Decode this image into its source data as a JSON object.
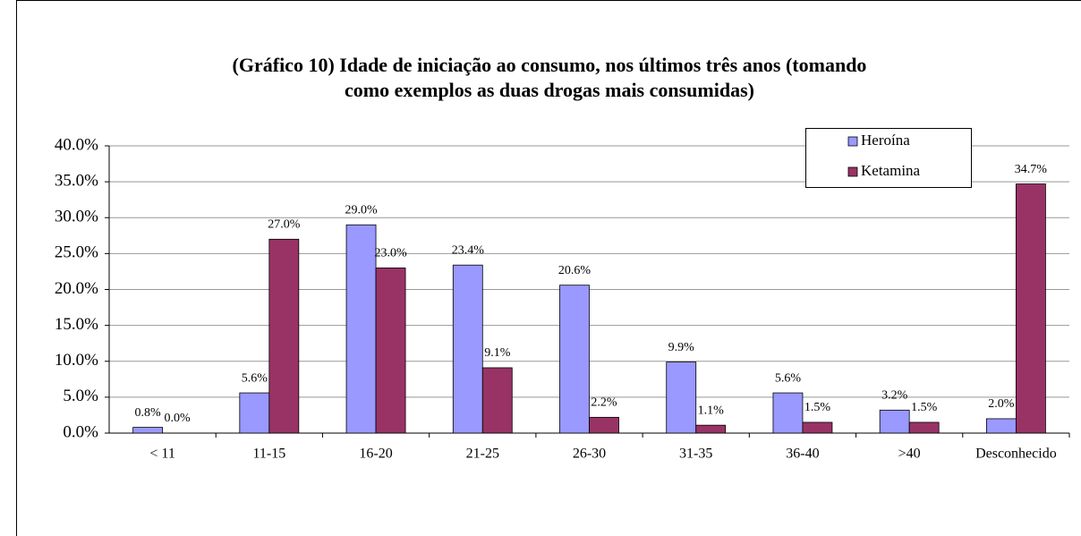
{
  "chart_data": {
    "type": "bar",
    "title": [
      "(Gráfico 10) Idade de iniciação ao consumo, nos últimos três anos (tomando",
      "como exemplos as duas drogas mais consumidas)"
    ],
    "categories": [
      "< 11",
      "11-15",
      "16-20",
      "21-25",
      "26-30",
      "31-35",
      "36-40",
      ">40",
      "Desconhecido"
    ],
    "series": [
      {
        "name": "Heroína",
        "color": "#9999ff",
        "values": [
          0.8,
          5.6,
          29.0,
          23.4,
          20.6,
          9.9,
          5.6,
          3.2,
          2.0
        ],
        "value_labels": [
          "0.8%",
          "5.6%",
          "29.0%",
          "23.4%",
          "20.6%",
          "9.9%",
          "5.6%",
          "3.2%",
          "2.0%"
        ]
      },
      {
        "name": "Ketamina",
        "color": "#993366",
        "values": [
          0.0,
          27.0,
          23.0,
          9.1,
          2.2,
          1.1,
          1.5,
          1.5,
          34.7
        ],
        "value_labels": [
          "0.0%",
          "27.0%",
          "23.0%",
          "9.1%",
          "2.2%",
          "1.1%",
          "1.5%",
          "1.5%",
          "34.7%"
        ]
      }
    ],
    "ylim": [
      0,
      40
    ],
    "yticks": [
      {
        "value": 0,
        "label": "0.0%"
      },
      {
        "value": 5,
        "label": "5.0%"
      },
      {
        "value": 10,
        "label": "10.0%"
      },
      {
        "value": 15,
        "label": "15.0%"
      },
      {
        "value": 20,
        "label": "20.0%"
      },
      {
        "value": 25,
        "label": "25.0%"
      },
      {
        "value": 30,
        "label": "30.0%"
      },
      {
        "value": 35,
        "label": "35.0%"
      },
      {
        "value": 40,
        "label": "40.0%"
      }
    ],
    "grid": true,
    "legend": "top-right"
  }
}
